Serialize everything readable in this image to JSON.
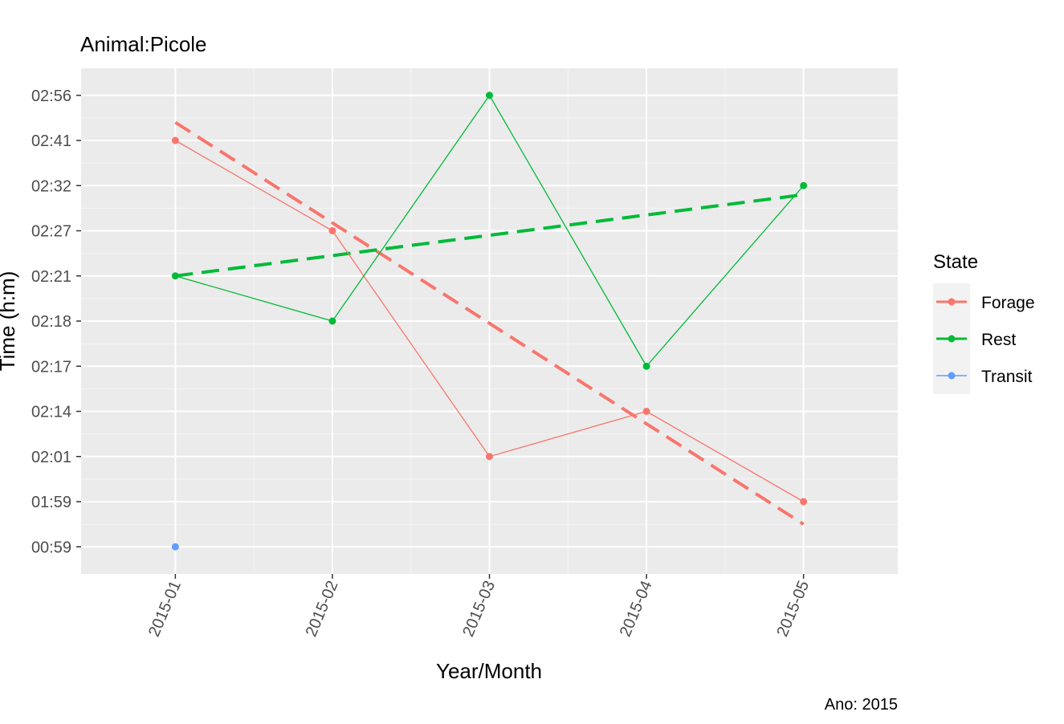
{
  "chart_data": {
    "type": "line",
    "title": "Animal:Picole",
    "xlabel": "Year/Month",
    "ylabel": "Time (h:m)",
    "caption": "Ano: 2015",
    "categories": [
      "2015-01",
      "2015-02",
      "2015-03",
      "2015-04",
      "2015-05"
    ],
    "y_scale": "categorical",
    "y_ticks": [
      "00:59",
      "01:59",
      "02:01",
      "02:14",
      "02:17",
      "02:18",
      "02:21",
      "02:27",
      "02:32",
      "02:41",
      "02:56"
    ],
    "grid": true,
    "legend": {
      "title": "State",
      "position": "right",
      "entries": [
        "Forage",
        "Rest",
        "Transit"
      ]
    },
    "series": [
      {
        "name": "Forage",
        "color": "#F8766D",
        "values": [
          "02:41",
          "02:27",
          "02:01",
          "02:14",
          "01:59"
        ],
        "trend": {
          "start": 9.4,
          "end": 0.5
        }
      },
      {
        "name": "Rest",
        "color": "#00BA38",
        "values": [
          "02:21",
          "02:18",
          "02:56",
          "02:17",
          "02:32"
        ],
        "trend": {
          "start": 6.0,
          "end": 7.8
        }
      },
      {
        "name": "Transit",
        "color": "#619CFF",
        "values": [
          "00:59",
          null,
          null,
          null,
          null
        ]
      }
    ]
  }
}
